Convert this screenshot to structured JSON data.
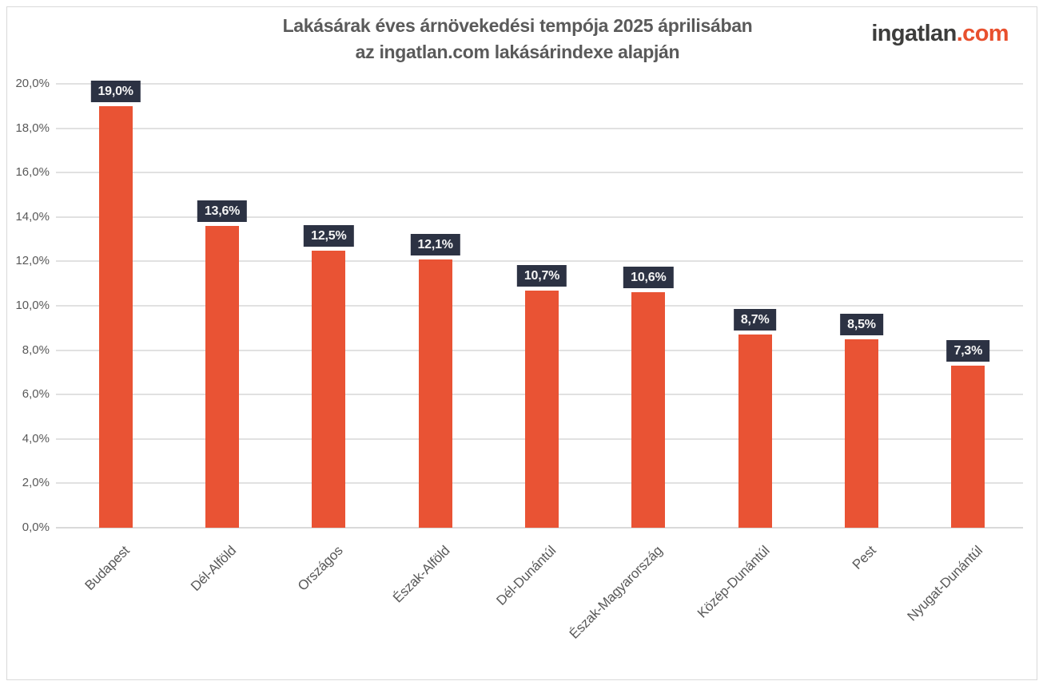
{
  "header": {
    "title_line1": "Lakásárak éves árnövekedési tempója 2025 áprilisában",
    "title_line2": "az ingatlan.com lakásárindexe alapján",
    "logo": {
      "name": "ingatlan",
      "tld": ".com"
    }
  },
  "colors": {
    "bar": "#e95334",
    "value_box": "#2c3243",
    "value_text": "#f5f5f5",
    "title_text": "#5a5a5a",
    "axis_text": "#595959",
    "gridline": "#e1e1e1",
    "baseline": "#d9d9d9",
    "logo_name": "#3d3d3c",
    "logo_tld": "#e8502e"
  },
  "chart_data": {
    "type": "bar",
    "title": "Lakásárak éves árnövekedési tempója 2025 áprilisában az ingatlan.com lakásárindexe alapján",
    "xlabel": "",
    "ylabel": "",
    "ylim": [
      0,
      20
    ],
    "y_tick_step": 2,
    "grid": true,
    "legend": "none",
    "categories": [
      "Budapest",
      "Dél-Alföld",
      "Országos",
      "Észak-Alföld",
      "Dél-Dunántúl",
      "Észak-Magyarország",
      "Közép-Dunántúl",
      "Pest",
      "Nyugat-Dunántúl"
    ],
    "values": [
      19.0,
      13.6,
      12.5,
      12.1,
      10.7,
      10.6,
      8.7,
      8.5,
      7.3
    ],
    "value_labels": [
      "19,0%",
      "13,6%",
      "12,5%",
      "12,1%",
      "10,7%",
      "10,6%",
      "8,7%",
      "8,5%",
      "7,3%"
    ],
    "y_ticks": [
      {
        "value": 0,
        "label": "0,0%"
      },
      {
        "value": 2,
        "label": "2,0%"
      },
      {
        "value": 4,
        "label": "4,0%"
      },
      {
        "value": 6,
        "label": "6,0%"
      },
      {
        "value": 8,
        "label": "8,0%"
      },
      {
        "value": 10,
        "label": "10,0%"
      },
      {
        "value": 12,
        "label": "12,0%"
      },
      {
        "value": 14,
        "label": "14,0%"
      },
      {
        "value": 16,
        "label": "16,0%"
      },
      {
        "value": 18,
        "label": "18,0%"
      },
      {
        "value": 20,
        "label": "20,0%"
      }
    ]
  }
}
